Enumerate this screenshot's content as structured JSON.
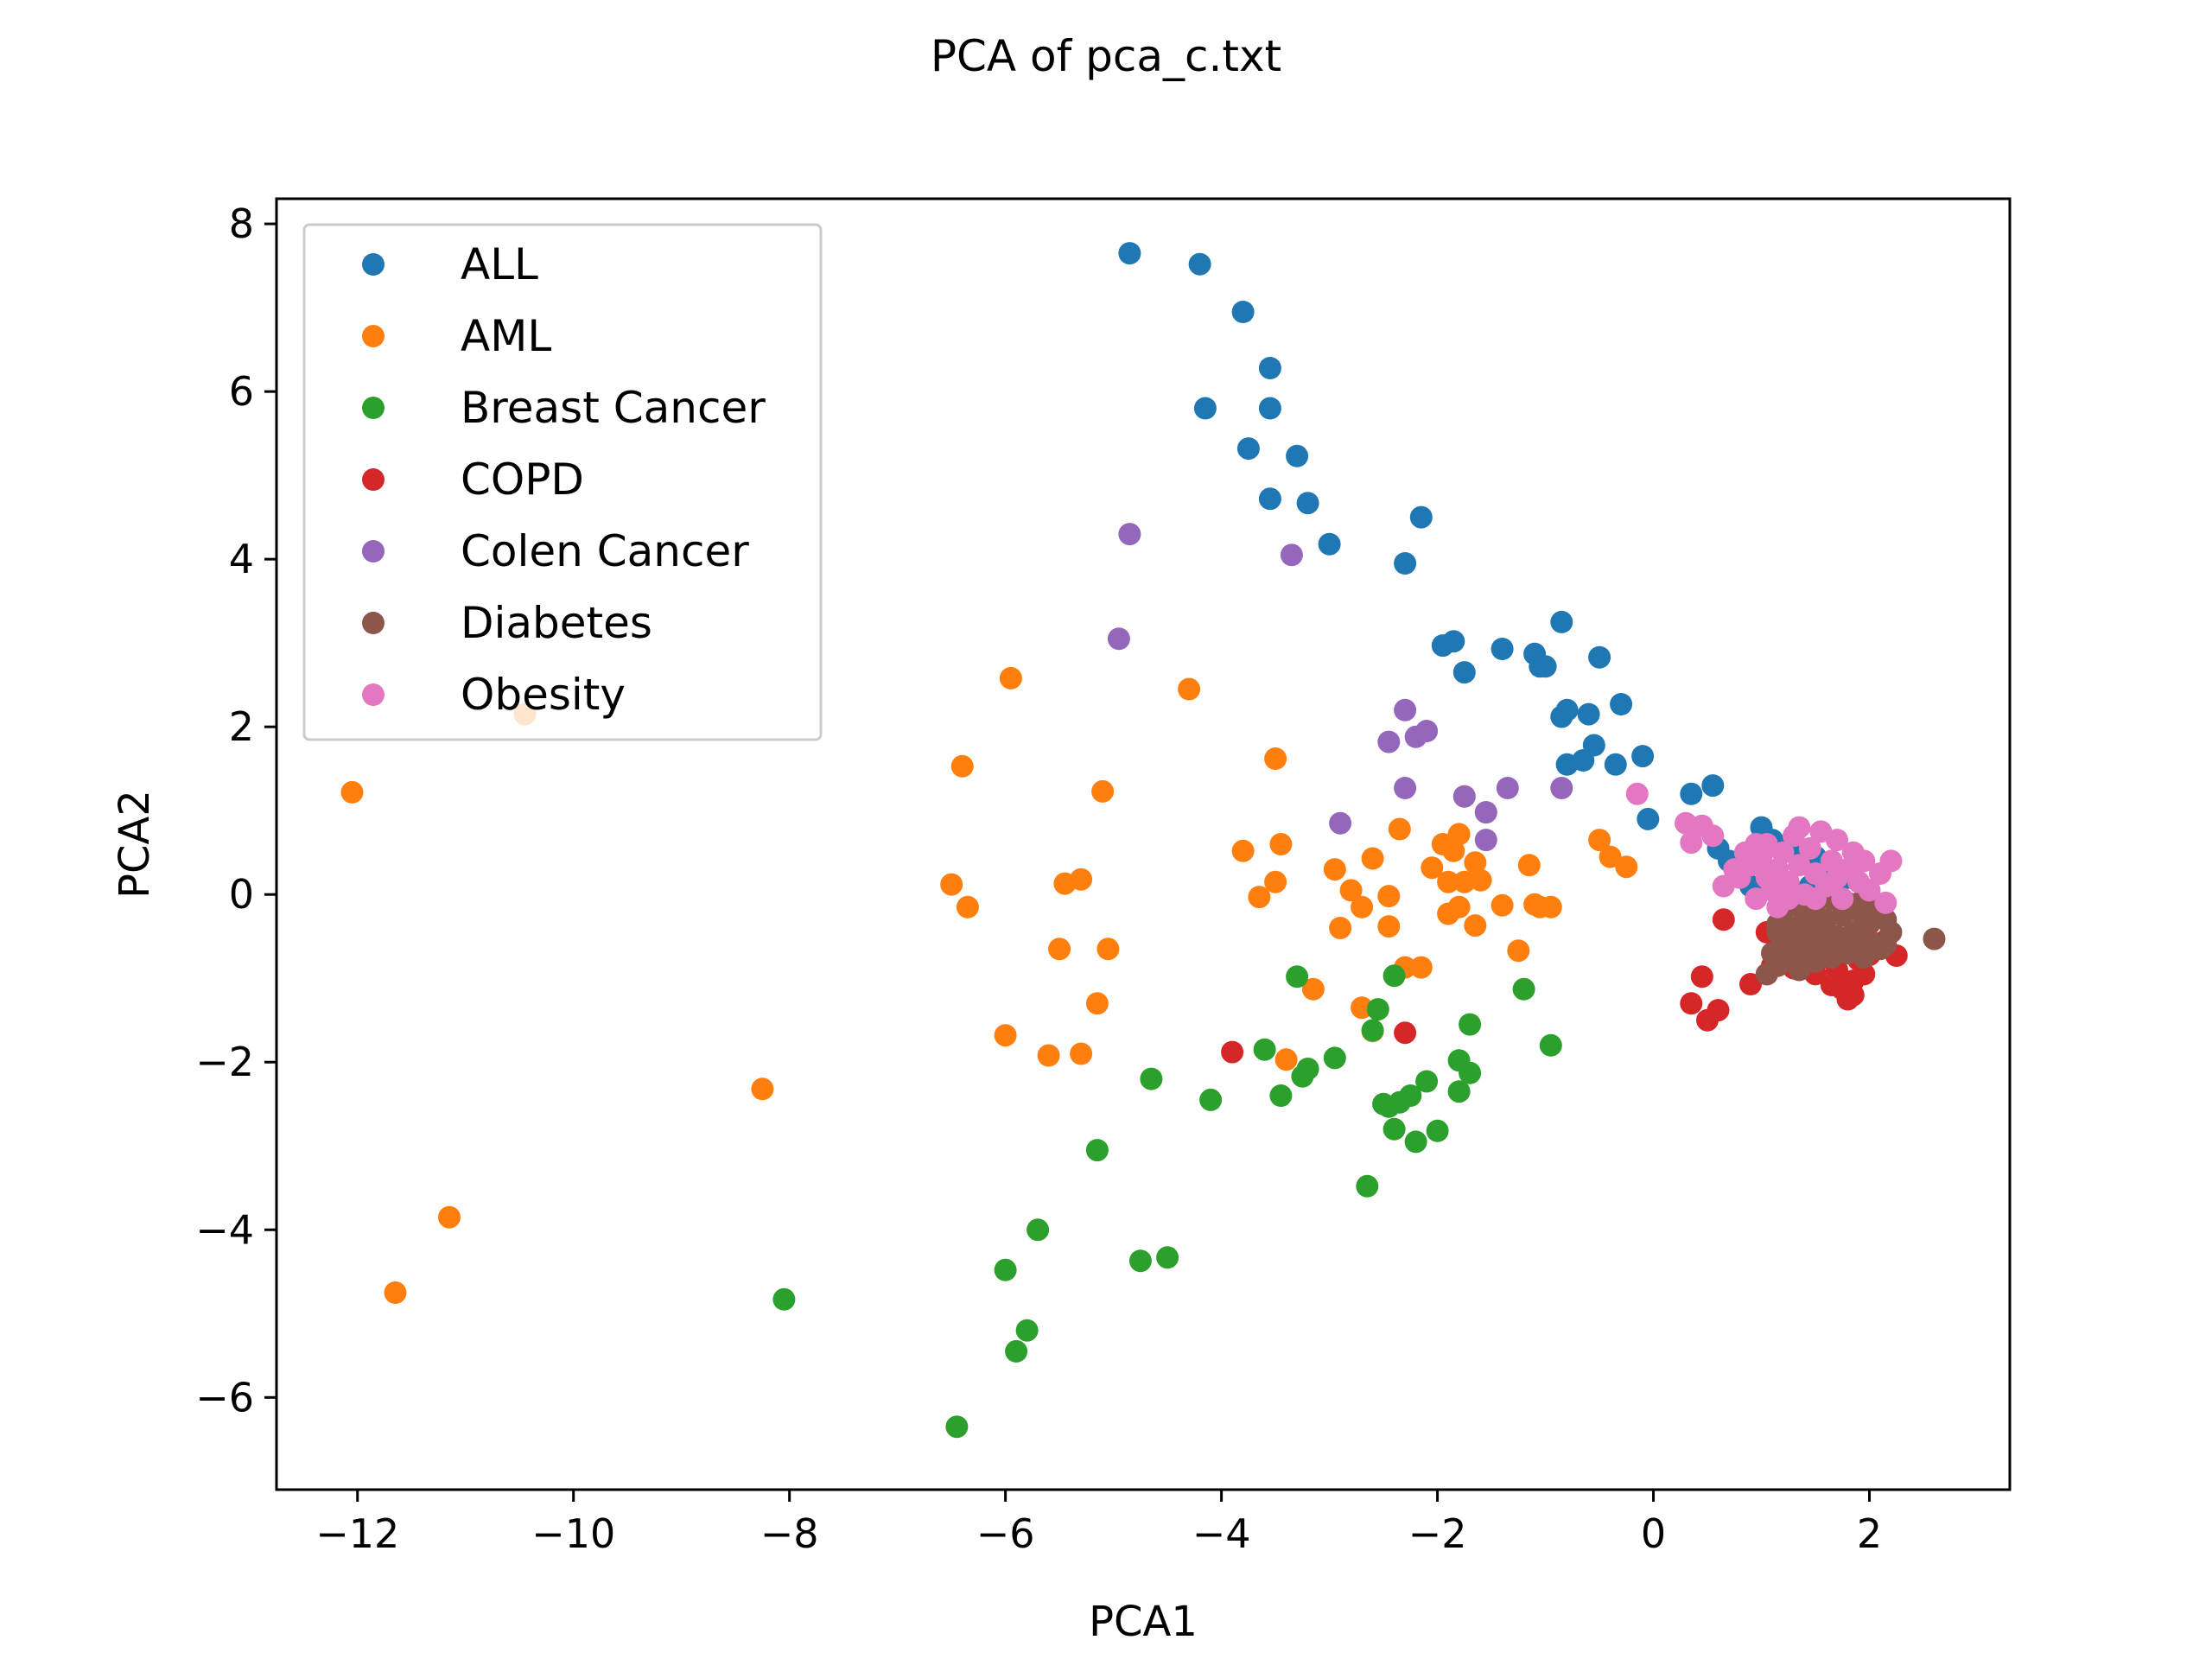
{
  "chart_data": {
    "type": "scatter",
    "title": "PCA of pca_c.txt",
    "xlabel": "PCA1",
    "ylabel": "PCA2",
    "xlim": [
      -12.75,
      3.3
    ],
    "ylim": [
      -7.1,
      8.3
    ],
    "xticks": [
      -12,
      -10,
      -8,
      -6,
      -4,
      -2,
      0,
      2
    ],
    "xtick_labels": [
      "−12",
      "−10",
      "−8",
      "−6",
      "−4",
      "−2",
      "0",
      "2"
    ],
    "yticks": [
      -6,
      -4,
      -2,
      0,
      2,
      4,
      6,
      8
    ],
    "ytick_labels": [
      "−6",
      "−4",
      "−2",
      "0",
      "2",
      "4",
      "6",
      "8"
    ],
    "grid": false,
    "legend_position": "upper-left",
    "series": [
      {
        "name": "ALL",
        "color": "#1f77b4",
        "points": [
          [
            -4.85,
            7.65
          ],
          [
            -4.2,
            7.52
          ],
          [
            -3.8,
            6.95
          ],
          [
            -3.55,
            6.28
          ],
          [
            -4.15,
            5.8
          ],
          [
            -3.55,
            5.8
          ],
          [
            -3.75,
            5.32
          ],
          [
            -3.3,
            5.23
          ],
          [
            -3.55,
            4.72
          ],
          [
            -3.2,
            4.67
          ],
          [
            -3.0,
            4.18
          ],
          [
            -2.15,
            4.5
          ],
          [
            -2.3,
            3.95
          ],
          [
            -1.95,
            2.97
          ],
          [
            -1.85,
            3.02
          ],
          [
            -1.75,
            2.65
          ],
          [
            -1.4,
            2.93
          ],
          [
            -1.1,
            2.87
          ],
          [
            -1.05,
            2.72
          ],
          [
            -1.0,
            2.72
          ],
          [
            -0.85,
            3.25
          ],
          [
            -0.5,
            2.83
          ],
          [
            -0.85,
            2.12
          ],
          [
            -0.8,
            2.2
          ],
          [
            -0.6,
            2.15
          ],
          [
            -0.3,
            2.27
          ],
          [
            -0.8,
            1.55
          ],
          [
            -0.65,
            1.6
          ],
          [
            -0.55,
            1.78
          ],
          [
            -0.35,
            1.55
          ],
          [
            -0.1,
            1.65
          ],
          [
            0.35,
            1.2
          ],
          [
            0.55,
            1.3
          ],
          [
            -0.05,
            0.9
          ],
          [
            0.6,
            0.55
          ],
          [
            0.7,
            0.4
          ],
          [
            0.85,
            0.3
          ],
          [
            1.0,
            0.8
          ],
          [
            1.1,
            0.65
          ],
          [
            1.25,
            0.6
          ],
          [
            0.9,
            0.1
          ],
          [
            1.15,
            0.15
          ],
          [
            1.3,
            0.5
          ],
          [
            1.5,
            0.45
          ],
          [
            1.65,
            0.3
          ],
          [
            1.8,
            0.2
          ],
          [
            1.45,
            0.1
          ],
          [
            1.7,
            0.0
          ]
        ]
      },
      {
        "name": "AML",
        "color": "#ff7f0e",
        "points": [
          [
            -12.05,
            1.22
          ],
          [
            -10.45,
            2.15
          ],
          [
            -11.15,
            -3.85
          ],
          [
            -11.65,
            -4.75
          ],
          [
            -8.25,
            -2.32
          ],
          [
            -6.4,
            1.53
          ],
          [
            -6.5,
            0.12
          ],
          [
            -6.35,
            -0.15
          ],
          [
            -6.0,
            -1.68
          ],
          [
            -5.95,
            2.58
          ],
          [
            -5.6,
            -1.92
          ],
          [
            -5.45,
            0.13
          ],
          [
            -5.3,
            0.18
          ],
          [
            -5.5,
            -0.65
          ],
          [
            -5.1,
            1.23
          ],
          [
            -5.05,
            -0.65
          ],
          [
            -5.15,
            -1.3
          ],
          [
            -5.3,
            -1.9
          ],
          [
            -4.3,
            2.45
          ],
          [
            -3.8,
            0.52
          ],
          [
            -3.65,
            -0.03
          ],
          [
            -3.5,
            1.62
          ],
          [
            -3.45,
            0.6
          ],
          [
            -3.5,
            0.15
          ],
          [
            -3.4,
            -1.97
          ],
          [
            -3.15,
            -1.13
          ],
          [
            -2.95,
            0.3
          ],
          [
            -2.9,
            -0.4
          ],
          [
            -2.8,
            0.05
          ],
          [
            -2.7,
            -0.15
          ],
          [
            -2.7,
            -1.35
          ],
          [
            -2.6,
            0.43
          ],
          [
            -2.6,
            -1.63
          ],
          [
            -2.45,
            -0.38
          ],
          [
            -2.45,
            -0.02
          ],
          [
            -2.35,
            0.78
          ],
          [
            -2.3,
            -0.87
          ],
          [
            -2.15,
            -0.87
          ],
          [
            -2.05,
            0.32
          ],
          [
            -1.95,
            0.6
          ],
          [
            -1.85,
            0.52
          ],
          [
            -1.8,
            0.72
          ],
          [
            -1.75,
            1.17
          ],
          [
            -1.65,
            0.38
          ],
          [
            -1.55,
            0.98
          ],
          [
            -1.9,
            -0.23
          ],
          [
            -1.8,
            -0.15
          ],
          [
            -1.65,
            -0.37
          ],
          [
            -1.9,
            0.15
          ],
          [
            -1.75,
            0.15
          ],
          [
            -1.6,
            0.17
          ],
          [
            -1.4,
            -0.13
          ],
          [
            -1.25,
            -0.67
          ],
          [
            -1.15,
            0.35
          ],
          [
            -1.05,
            -0.15
          ],
          [
            -1.1,
            -0.12
          ],
          [
            -0.95,
            -0.15
          ],
          [
            -0.5,
            0.65
          ],
          [
            -0.4,
            0.45
          ],
          [
            -0.25,
            0.33
          ]
        ]
      },
      {
        "name": "Breast Cancer",
        "color": "#2ca02c",
        "points": [
          [
            -8.05,
            -4.83
          ],
          [
            -6.45,
            -6.35
          ],
          [
            -6.0,
            -4.48
          ],
          [
            -5.9,
            -5.45
          ],
          [
            -5.8,
            -5.2
          ],
          [
            -5.7,
            -4.0
          ],
          [
            -5.15,
            -3.05
          ],
          [
            -4.75,
            -4.37
          ],
          [
            -4.5,
            -4.33
          ],
          [
            -4.65,
            -2.2
          ],
          [
            -4.1,
            -2.45
          ],
          [
            -3.6,
            -1.85
          ],
          [
            -3.45,
            -2.4
          ],
          [
            -3.25,
            -2.17
          ],
          [
            -3.2,
            -2.08
          ],
          [
            -3.3,
            -0.98
          ],
          [
            -2.95,
            -1.95
          ],
          [
            -2.65,
            -3.48
          ],
          [
            -2.6,
            -1.62
          ],
          [
            -2.55,
            -1.37
          ],
          [
            -2.5,
            -2.5
          ],
          [
            -2.45,
            -2.53
          ],
          [
            -2.4,
            -2.8
          ],
          [
            -2.35,
            -2.48
          ],
          [
            -2.2,
            -2.95
          ],
          [
            -2.25,
            -2.4
          ],
          [
            -2.1,
            -2.23
          ],
          [
            -2.0,
            -2.82
          ],
          [
            -1.8,
            -2.35
          ],
          [
            -1.8,
            -1.98
          ],
          [
            -1.7,
            -2.13
          ],
          [
            -1.7,
            -1.55
          ],
          [
            -1.2,
            -1.13
          ],
          [
            -0.95,
            -1.8
          ],
          [
            -2.4,
            -0.97
          ]
        ]
      },
      {
        "name": "COPD",
        "color": "#d62728",
        "points": [
          [
            -3.9,
            -1.88
          ],
          [
            -2.3,
            -1.65
          ],
          [
            0.35,
            -1.3
          ],
          [
            0.45,
            -0.98
          ],
          [
            0.5,
            -1.5
          ],
          [
            0.6,
            -1.38
          ],
          [
            0.65,
            -0.3
          ],
          [
            0.9,
            -1.07
          ],
          [
            1.05,
            -0.95
          ],
          [
            1.2,
            -0.75
          ],
          [
            1.35,
            -0.7
          ],
          [
            1.45,
            -0.8
          ],
          [
            1.55,
            -0.65
          ],
          [
            1.65,
            -1.08
          ],
          [
            1.75,
            -1.13
          ],
          [
            1.8,
            -1.25
          ],
          [
            1.85,
            -1.03
          ],
          [
            1.7,
            -0.9
          ],
          [
            1.9,
            -0.78
          ],
          [
            2.0,
            -0.72
          ],
          [
            2.1,
            -0.63
          ],
          [
            2.25,
            -0.73
          ],
          [
            2.15,
            -0.55
          ],
          [
            1.6,
            -0.75
          ],
          [
            1.3,
            -0.88
          ],
          [
            1.1,
            -0.85
          ],
          [
            1.5,
            -0.95
          ],
          [
            1.95,
            -0.95
          ],
          [
            1.05,
            -0.45
          ],
          [
            1.85,
            -1.2
          ]
        ]
      },
      {
        "name": "Colen Cancer",
        "color": "#9467bd",
        "points": [
          [
            -4.85,
            4.3
          ],
          [
            -4.95,
            3.05
          ],
          [
            -3.35,
            4.05
          ],
          [
            -2.3,
            2.2
          ],
          [
            -2.45,
            1.82
          ],
          [
            -2.2,
            1.88
          ],
          [
            -2.1,
            1.95
          ],
          [
            -2.3,
            1.27
          ],
          [
            -1.75,
            1.17
          ],
          [
            -1.55,
            0.98
          ],
          [
            -1.35,
            1.27
          ],
          [
            -0.85,
            1.27
          ],
          [
            -2.9,
            0.85
          ],
          [
            -1.55,
            0.65
          ]
        ]
      },
      {
        "name": "Diabetes",
        "color": "#8c564b",
        "points": [
          [
            2.6,
            -0.53
          ],
          [
            1.05,
            -0.95
          ],
          [
            1.15,
            -0.85
          ],
          [
            1.25,
            -0.75
          ],
          [
            1.4,
            -0.7
          ],
          [
            1.55,
            -0.6
          ],
          [
            1.7,
            -0.5
          ],
          [
            1.85,
            -0.45
          ],
          [
            2.0,
            -0.35
          ],
          [
            2.15,
            -0.3
          ],
          [
            2.2,
            -0.45
          ],
          [
            1.15,
            -0.45
          ],
          [
            1.3,
            -0.4
          ],
          [
            1.45,
            -0.35
          ],
          [
            1.6,
            -0.3
          ],
          [
            1.75,
            -0.25
          ],
          [
            1.9,
            -0.2
          ],
          [
            2.05,
            -0.15
          ],
          [
            1.2,
            -0.2
          ],
          [
            1.35,
            -0.15
          ],
          [
            1.5,
            -0.1
          ],
          [
            1.65,
            -0.05
          ],
          [
            1.8,
            -0.1
          ],
          [
            1.95,
            -0.05
          ],
          [
            1.25,
            -0.6
          ],
          [
            1.4,
            -0.55
          ],
          [
            1.55,
            -0.5
          ],
          [
            1.7,
            -0.65
          ],
          [
            1.85,
            -0.6
          ],
          [
            2.0,
            -0.55
          ],
          [
            2.1,
            -0.65
          ],
          [
            1.1,
            -0.7
          ],
          [
            1.35,
            -0.9
          ],
          [
            1.5,
            -0.8
          ],
          [
            1.65,
            -0.75
          ],
          [
            1.8,
            -0.7
          ],
          [
            1.95,
            -0.75
          ],
          [
            2.15,
            -0.6
          ],
          [
            1.15,
            -0.35
          ],
          [
            1.45,
            -0.25
          ]
        ]
      },
      {
        "name": "Obesity",
        "color": "#e377c2",
        "points": [
          [
            -0.15,
            1.2
          ],
          [
            0.3,
            0.85
          ],
          [
            0.45,
            0.82
          ],
          [
            0.55,
            0.7
          ],
          [
            0.35,
            0.62
          ],
          [
            0.65,
            0.1
          ],
          [
            0.75,
            0.3
          ],
          [
            0.8,
            0.2
          ],
          [
            0.85,
            0.5
          ],
          [
            0.9,
            0.35
          ],
          [
            0.95,
            0.6
          ],
          [
            1.0,
            0.45
          ],
          [
            1.05,
            0.2
          ],
          [
            1.1,
            0.05
          ],
          [
            1.15,
            0.3
          ],
          [
            1.2,
            0.5
          ],
          [
            1.25,
            0.15
          ],
          [
            1.3,
            0.7
          ],
          [
            1.35,
            0.35
          ],
          [
            1.4,
            0.0
          ],
          [
            1.45,
            0.55
          ],
          [
            1.5,
            0.25
          ],
          [
            1.55,
            0.75
          ],
          [
            1.6,
            0.1
          ],
          [
            1.65,
            0.4
          ],
          [
            1.7,
            0.65
          ],
          [
            1.75,
            -0.05
          ],
          [
            1.8,
            0.3
          ],
          [
            1.85,
            0.5
          ],
          [
            1.9,
            0.15
          ],
          [
            2.0,
            0.05
          ],
          [
            2.1,
            0.25
          ],
          [
            2.2,
            0.4
          ],
          [
            2.15,
            -0.1
          ],
          [
            1.95,
            0.4
          ],
          [
            1.35,
            0.8
          ],
          [
            1.25,
            -0.05
          ],
          [
            1.15,
            -0.15
          ],
          [
            1.5,
            -0.05
          ],
          [
            1.7,
            0.2
          ],
          [
            0.95,
            -0.05
          ],
          [
            1.05,
            0.6
          ]
        ]
      }
    ]
  }
}
